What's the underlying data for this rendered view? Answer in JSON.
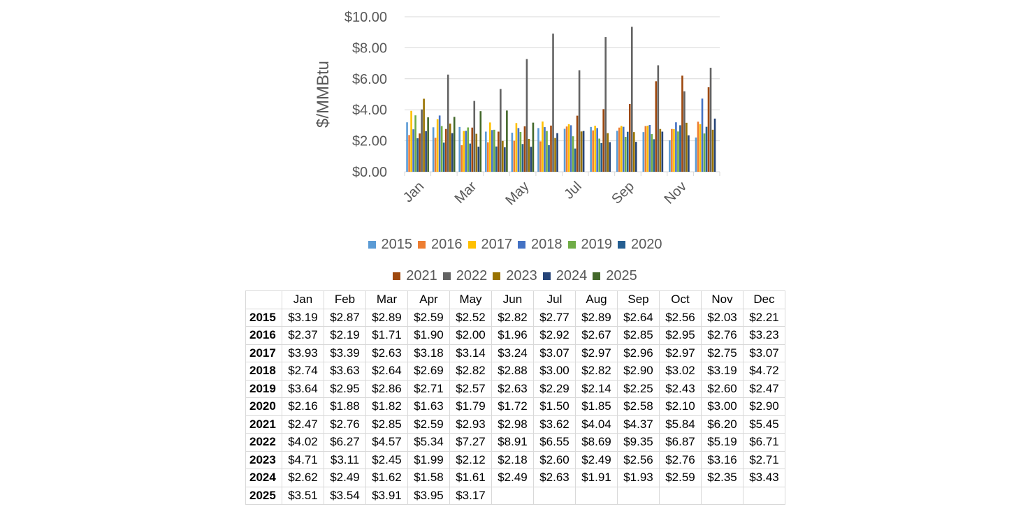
{
  "chart_data": {
    "type": "bar",
    "ylabel": "$/MMBtu",
    "xlabel": "",
    "ylim": [
      0,
      10
    ],
    "yticks": [
      "$0.00",
      "$2.00",
      "$4.00",
      "$6.00",
      "$8.00",
      "$10.00"
    ],
    "categories": [
      "Jan",
      "Feb",
      "Mar",
      "Apr",
      "May",
      "Jun",
      "Jul",
      "Aug",
      "Sep",
      "Oct",
      "Nov",
      "Dec"
    ],
    "xtick_labels": [
      "Jan",
      "Mar",
      "May",
      "Jul",
      "Sep",
      "Nov"
    ],
    "grid": "horizontal",
    "legend_position": "bottom",
    "series": [
      {
        "name": "2015",
        "color": "#5B9BD5",
        "values": [
          3.19,
          2.87,
          2.89,
          2.59,
          2.52,
          2.82,
          2.77,
          2.89,
          2.64,
          2.56,
          2.03,
          2.21
        ]
      },
      {
        "name": "2016",
        "color": "#ED7D31",
        "values": [
          2.37,
          2.19,
          1.71,
          1.9,
          2.0,
          1.96,
          2.92,
          2.67,
          2.85,
          2.95,
          2.76,
          3.23
        ]
      },
      {
        "name": "2017",
        "color": "#FFC000",
        "values": [
          3.93,
          3.39,
          2.63,
          3.18,
          3.14,
          3.24,
          3.07,
          2.97,
          2.96,
          2.97,
          2.75,
          3.07
        ]
      },
      {
        "name": "2018",
        "color": "#4472C4",
        "values": [
          2.74,
          3.63,
          2.64,
          2.69,
          2.82,
          2.88,
          3.0,
          2.82,
          2.9,
          3.02,
          3.19,
          4.72
        ]
      },
      {
        "name": "2019",
        "color": "#70AD47",
        "values": [
          3.64,
          2.95,
          2.86,
          2.71,
          2.57,
          2.63,
          2.29,
          2.14,
          2.25,
          2.43,
          2.6,
          2.47
        ]
      },
      {
        "name": "2020",
        "color": "#255E91",
        "values": [
          2.16,
          1.88,
          1.82,
          1.63,
          1.79,
          1.72,
          1.5,
          1.85,
          2.58,
          2.1,
          3.0,
          2.9
        ]
      },
      {
        "name": "2021",
        "color": "#9E480E",
        "values": [
          2.47,
          2.76,
          2.85,
          2.59,
          2.93,
          2.98,
          3.62,
          4.04,
          4.37,
          5.84,
          6.2,
          5.45
        ]
      },
      {
        "name": "2022",
        "color": "#636363",
        "values": [
          4.02,
          6.27,
          4.57,
          5.34,
          7.27,
          8.91,
          6.55,
          8.69,
          9.35,
          6.87,
          5.19,
          6.71
        ]
      },
      {
        "name": "2023",
        "color": "#997300",
        "values": [
          4.71,
          3.11,
          2.45,
          1.99,
          2.12,
          2.18,
          2.6,
          2.49,
          2.56,
          2.76,
          3.16,
          2.71
        ]
      },
      {
        "name": "2024",
        "color": "#264478",
        "values": [
          2.62,
          2.49,
          1.62,
          1.58,
          1.61,
          2.49,
          2.63,
          1.91,
          1.93,
          2.59,
          2.35,
          3.43
        ]
      },
      {
        "name": "2025",
        "color": "#43682B",
        "values": [
          3.51,
          3.54,
          3.91,
          3.95,
          3.17,
          null,
          null,
          null,
          null,
          null,
          null,
          null
        ]
      }
    ]
  },
  "table": {
    "corner": "",
    "headers": [
      "Jan",
      "Feb",
      "Mar",
      "Apr",
      "May",
      "Jun",
      "Jul",
      "Aug",
      "Sep",
      "Oct",
      "Nov",
      "Dec"
    ],
    "rows": [
      {
        "year": "2015",
        "cells": [
          "$3.19",
          "$2.87",
          "$2.89",
          "$2.59",
          "$2.52",
          "$2.82",
          "$2.77",
          "$2.89",
          "$2.64",
          "$2.56",
          "$2.03",
          "$2.21"
        ]
      },
      {
        "year": "2016",
        "cells": [
          "$2.37",
          "$2.19",
          "$1.71",
          "$1.90",
          "$2.00",
          "$1.96",
          "$2.92",
          "$2.67",
          "$2.85",
          "$2.95",
          "$2.76",
          "$3.23"
        ]
      },
      {
        "year": "2017",
        "cells": [
          "$3.93",
          "$3.39",
          "$2.63",
          "$3.18",
          "$3.14",
          "$3.24",
          "$3.07",
          "$2.97",
          "$2.96",
          "$2.97",
          "$2.75",
          "$3.07"
        ]
      },
      {
        "year": "2018",
        "cells": [
          "$2.74",
          "$3.63",
          "$2.64",
          "$2.69",
          "$2.82",
          "$2.88",
          "$3.00",
          "$2.82",
          "$2.90",
          "$3.02",
          "$3.19",
          "$4.72"
        ]
      },
      {
        "year": "2019",
        "cells": [
          "$3.64",
          "$2.95",
          "$2.86",
          "$2.71",
          "$2.57",
          "$2.63",
          "$2.29",
          "$2.14",
          "$2.25",
          "$2.43",
          "$2.60",
          "$2.47"
        ]
      },
      {
        "year": "2020",
        "cells": [
          "$2.16",
          "$1.88",
          "$1.82",
          "$1.63",
          "$1.79",
          "$1.72",
          "$1.50",
          "$1.85",
          "$2.58",
          "$2.10",
          "$3.00",
          "$2.90"
        ]
      },
      {
        "year": "2021",
        "cells": [
          "$2.47",
          "$2.76",
          "$2.85",
          "$2.59",
          "$2.93",
          "$2.98",
          "$3.62",
          "$4.04",
          "$4.37",
          "$5.84",
          "$6.20",
          "$5.45"
        ]
      },
      {
        "year": "2022",
        "cells": [
          "$4.02",
          "$6.27",
          "$4.57",
          "$5.34",
          "$7.27",
          "$8.91",
          "$6.55",
          "$8.69",
          "$9.35",
          "$6.87",
          "$5.19",
          "$6.71"
        ]
      },
      {
        "year": "2023",
        "cells": [
          "$4.71",
          "$3.11",
          "$2.45",
          "$1.99",
          "$2.12",
          "$2.18",
          "$2.60",
          "$2.49",
          "$2.56",
          "$2.76",
          "$3.16",
          "$2.71"
        ]
      },
      {
        "year": "2024",
        "cells": [
          "$2.62",
          "$2.49",
          "$1.62",
          "$1.58",
          "$1.61",
          "$2.49",
          "$2.63",
          "$1.91",
          "$1.93",
          "$2.59",
          "$2.35",
          "$3.43"
        ]
      },
      {
        "year": "2025",
        "cells": [
          "$3.51",
          "$3.54",
          "$3.91",
          "$3.95",
          "$3.17",
          "",
          "",
          "",
          "",
          "",
          "",
          ""
        ]
      }
    ]
  }
}
